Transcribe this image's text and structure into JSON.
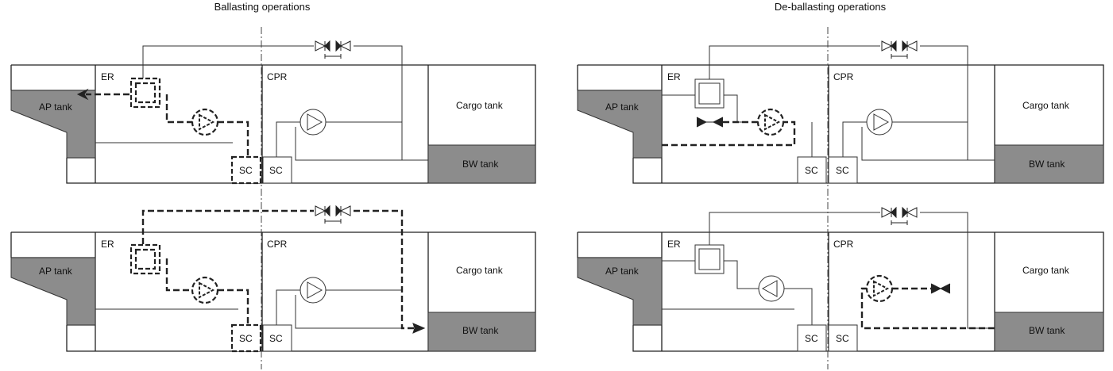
{
  "titles": {
    "left": "Ballasting operations",
    "right": "De-ballasting operations"
  },
  "labels": {
    "er": "ER",
    "cpr": "CPR",
    "ap_tank": "AP tank",
    "cargo_tank": "Cargo tank",
    "bw_tank": "BW tank",
    "sc": "SC"
  },
  "panels": [
    {
      "id": "ballast-1",
      "group": "Ballasting operations",
      "active_path": "AP tank → filter → UV pump → SC (ER)"
    },
    {
      "id": "ballast-2",
      "group": "Ballasting operations",
      "active_path": "SC (ER) → UV pump → filter → valves → BW tank"
    },
    {
      "id": "deballast-1",
      "group": "De-ballasting operations",
      "active_path": "AP tank → UV pump → SC (ER)"
    },
    {
      "id": "deballast-2",
      "group": "De-ballasting operations",
      "active_path": "BW tank → SC (CPR) → UV pump (CPR)"
    }
  ],
  "colors": {
    "tank_fill": "#8c8c8c",
    "line": "#222222"
  }
}
